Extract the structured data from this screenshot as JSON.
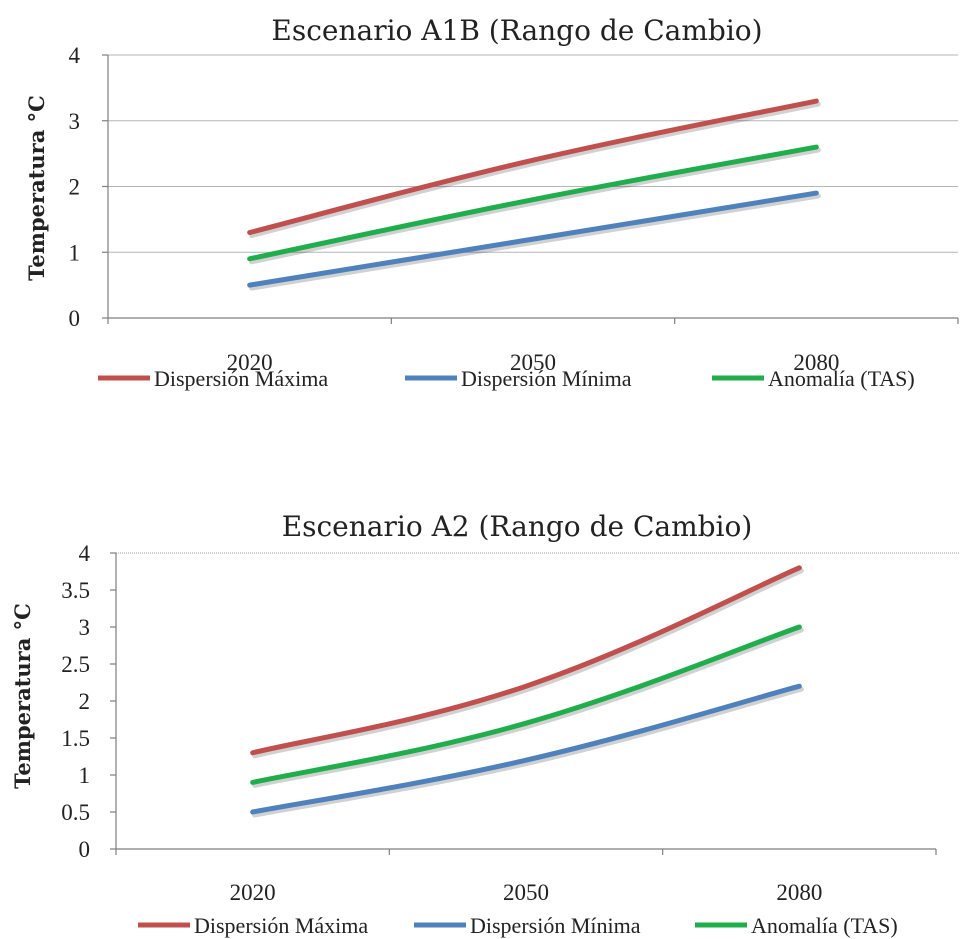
{
  "chart_data": [
    {
      "type": "line",
      "title": "Escenario A1B (Rango de Cambio)",
      "ylabel": "Temperatura °C",
      "xlabel": "",
      "categories": [
        "2020",
        "2050",
        "2080"
      ],
      "ylim": [
        0,
        4
      ],
      "yticks": [
        "0",
        "1",
        "2",
        "3",
        "4"
      ],
      "grid": true,
      "legend_position": "bottom",
      "series": [
        {
          "name": "Dispersión Máxima",
          "color": "#c0504d",
          "values": [
            1.3,
            2.4,
            3.3
          ]
        },
        {
          "name": "Dispersión Mínima",
          "color": "#4f81bd",
          "values": [
            0.5,
            1.2,
            1.9
          ]
        },
        {
          "name": "Anomalía (TAS)",
          "color": "#1fae4b",
          "values": [
            0.9,
            1.8,
            2.6
          ]
        }
      ]
    },
    {
      "type": "line",
      "title": "Escenario A2 (Rango de Cambio)",
      "ylabel": "Temperatura °C",
      "xlabel": "",
      "categories": [
        "2020",
        "2050",
        "2080"
      ],
      "ylim": [
        0,
        4
      ],
      "yticks": [
        "0",
        "0.5",
        "1",
        "1.5",
        "2",
        "2.5",
        "3",
        "3.5",
        "4"
      ],
      "grid": false,
      "legend_position": "bottom",
      "series": [
        {
          "name": "Dispersión Máxima",
          "color": "#c0504d",
          "values": [
            1.3,
            2.2,
            3.8
          ]
        },
        {
          "name": "Dispersión Mínima",
          "color": "#4f81bd",
          "values": [
            0.5,
            1.2,
            2.2
          ]
        },
        {
          "name": "Anomalía (TAS)",
          "color": "#1fae4b",
          "values": [
            0.9,
            1.7,
            3.0
          ]
        }
      ]
    }
  ]
}
